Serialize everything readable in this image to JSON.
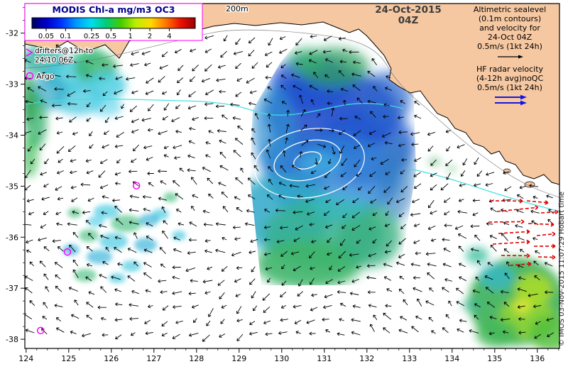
{
  "legend": {
    "title": "MODIS Chl-a mg/m3 OC3",
    "tick_labels": [
      "0.05",
      "0.1",
      "0.25",
      "0.5",
      "1",
      "2",
      "4"
    ],
    "tick_positions": [
      0.087,
      0.206,
      0.365,
      0.484,
      0.603,
      0.722,
      0.841
    ],
    "gradient": [
      "#000066",
      "#0000CC",
      "#0033FF",
      "#0099FF",
      "#00DDEE",
      "#00CC77",
      "#44CC00",
      "#BBEE00",
      "#FFD900",
      "#FF7700",
      "#EE1100",
      "#990000"
    ]
  },
  "header": {
    "depth_label": "200m",
    "date": "24-Oct-2015",
    "time": "04Z"
  },
  "annotations": {
    "altimetric": {
      "lines": [
        "Altimetric sealevel",
        "(0.1m contours)",
        "and velocity for",
        "24-Oct 04Z",
        "0.5m/s (1kt 24h)"
      ]
    },
    "hf_radar": {
      "lines": [
        "HF radar velocity",
        "(4-12h avg)noQC",
        "0.5m/s (1kt 24h)"
      ]
    },
    "drifters": {
      "lines": [
        "drifters@12h to",
        "24/10 06Z"
      ]
    },
    "argo_label": "Argo",
    "copyright": "© IMOS 03-Nov-2015 11:07:29 Hobart time"
  },
  "axes": {
    "x_range": [
      123.97,
      136.52
    ],
    "y_range": [
      -38.18,
      -31.42
    ],
    "x_ticks": [
      124,
      125,
      126,
      127,
      128,
      129,
      130,
      131,
      132,
      133,
      134,
      135,
      136
    ],
    "y_ticks": [
      -32,
      -33,
      -34,
      -35,
      -36,
      -37,
      -38
    ]
  },
  "colors": {
    "land": "#F6C8A2",
    "ocean": "#FFFFFF",
    "coast": "#000000",
    "legend_border": "#FF00FF",
    "legend_title": "#00008B",
    "sealevel_contour": "#3FE0E0",
    "eddy_contour": "#FFFFFF",
    "isobath": "#777777",
    "vector": "#000000",
    "hf_radar": "#E00000",
    "hf_legend_arrow": "#1515E0",
    "altimetric_arrow": "#000000",
    "drifter": "#FF00FF",
    "argo": "#FF00FF"
  },
  "map_data": {
    "type": "map",
    "x_axis": "longitude_deg_east",
    "y_axis": "latitude_deg",
    "argo_floats": [
      [
        126.59,
        -34.99
      ],
      [
        124.97,
        -36.29
      ],
      [
        124.34,
        -37.83
      ]
    ],
    "overlays": [
      "chlorophyll-a surface field",
      "altimetric sealevel contours",
      "surface velocity vectors",
      "HF radar velocity vectors",
      "200m isobath",
      "coastline"
    ]
  }
}
